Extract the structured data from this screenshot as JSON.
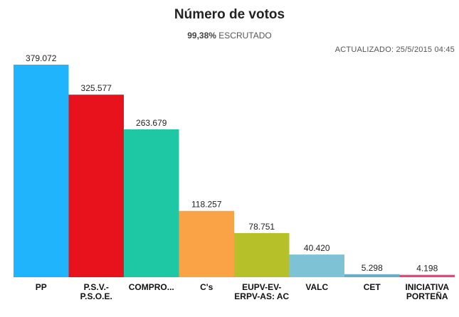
{
  "header": {
    "title": "Número de votos",
    "scrutiny_pct": "99,38%",
    "scrutiny_label": "ESCRUTADO",
    "updated": "ACTUALIZADO: 25/5/2015 04:45"
  },
  "chart_data": {
    "type": "bar",
    "title": "Número de votos",
    "categories": [
      "PP",
      "P.S.V.-P.S.O.E.",
      "COMPRO...",
      "C's",
      "EUPV-EV-ERPV-AS: AC",
      "VALC",
      "CET",
      "INICIATIVA PORTEÑA"
    ],
    "category_lines": [
      [
        "PP"
      ],
      [
        "P.S.V.-",
        "P.S.O.E."
      ],
      [
        "COMPRO..."
      ],
      [
        "C's"
      ],
      [
        "EUPV-EV-",
        "ERPV-AS: AC"
      ],
      [
        "VALC"
      ],
      [
        "CET"
      ],
      [
        "INICIATIVA",
        "PORTEÑA"
      ]
    ],
    "values": [
      379072,
      325577,
      263679,
      118257,
      78751,
      40420,
      5298,
      4198
    ],
    "value_labels": [
      "379.072",
      "325.577",
      "263.679",
      "118.257",
      "78.751",
      "40.420",
      "5.298",
      "4.198"
    ],
    "colors": [
      "#1fb4fb",
      "#e8121d",
      "#1fc8a5",
      "#f9a246",
      "#b6c12a",
      "#7ec3d5",
      "#67adc9",
      "#e8457a"
    ],
    "ylim": [
      0,
      379072
    ],
    "grid": false,
    "legend": "none"
  }
}
